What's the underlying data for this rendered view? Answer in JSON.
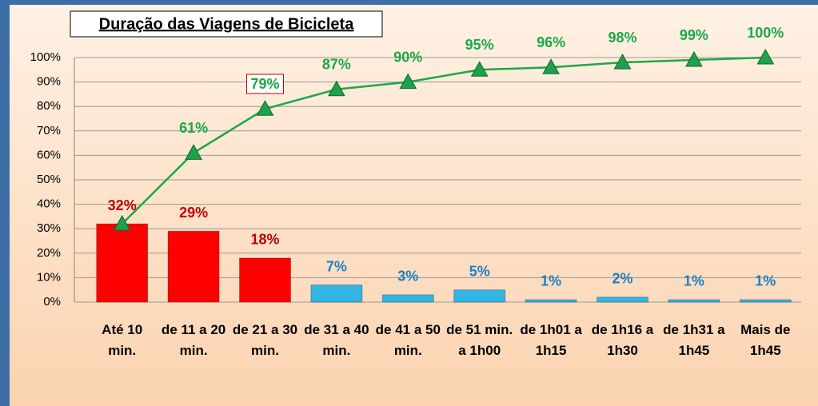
{
  "chart_data": {
    "type": "bar-line",
    "title": "Duração das Viagens de Bicicleta",
    "categories": [
      "Até 10 min.",
      "de 11 a 20 min.",
      "de 21 a 30 min.",
      "de 31 a 40 min.",
      "de 41 a 50 min.",
      "de 51 min. a 1h00",
      "de 1h01 a 1h15",
      "de 1h16 a 1h30",
      "de 1h31 a 1h45",
      "Mais de 1h45"
    ],
    "series": [
      {
        "type": "bar",
        "values": [
          32,
          29,
          18,
          7,
          3,
          5,
          1,
          2,
          1,
          1
        ],
        "value_labels": [
          "32%",
          "29%",
          "18%",
          "7%",
          "3%",
          "5%",
          "1%",
          "2%",
          "1%",
          "1%"
        ],
        "colors": [
          "#ff0000",
          "#ff0000",
          "#ff0000",
          "#33b5e5",
          "#33b5e5",
          "#33b5e5",
          "#33b5e5",
          "#33b5e5",
          "#33b5e5",
          "#33b5e5"
        ],
        "label_colors": [
          "#c00000",
          "#c00000",
          "#c00000",
          "#1f7fc4",
          "#1f7fc4",
          "#1f7fc4",
          "#1f7fc4",
          "#1f7fc4",
          "#1f7fc4",
          "#1f7fc4"
        ]
      },
      {
        "type": "line",
        "color": "#1aa84a",
        "values": [
          32,
          61,
          79,
          87,
          90,
          95,
          96,
          98,
          99,
          100
        ],
        "value_labels": [
          null,
          "61%",
          "79%",
          "87%",
          "90%",
          "95%",
          "96%",
          "98%",
          "99%",
          "100%"
        ]
      }
    ],
    "ylim": [
      0,
      100
    ],
    "yticks": [
      {
        "value": 0,
        "label": "0%"
      },
      {
        "value": 10,
        "label": "10%"
      },
      {
        "value": 20,
        "label": "20%"
      },
      {
        "value": 30,
        "label": "30%"
      },
      {
        "value": 40,
        "label": "40%"
      },
      {
        "value": 50,
        "label": "50%"
      },
      {
        "value": 60,
        "label": "60%"
      },
      {
        "value": 70,
        "label": "70%"
      },
      {
        "value": 80,
        "label": "80%"
      },
      {
        "value": 90,
        "label": "90%"
      },
      {
        "value": 100,
        "label": "100%"
      }
    ],
    "grid": true
  }
}
